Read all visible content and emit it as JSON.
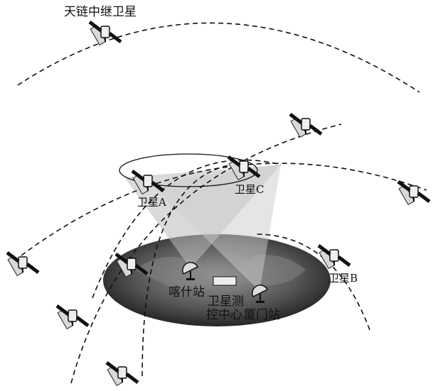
{
  "labels": {
    "relay_satellite": "天链中继卫星",
    "satellite_c": "卫星C",
    "satellite_a": "卫星A",
    "satellite_b": "卫星B",
    "kashi_station": "喀什站",
    "control_center": [
      "卫星测",
      "控中心"
    ],
    "xiamen_station": "厦门站"
  }
}
